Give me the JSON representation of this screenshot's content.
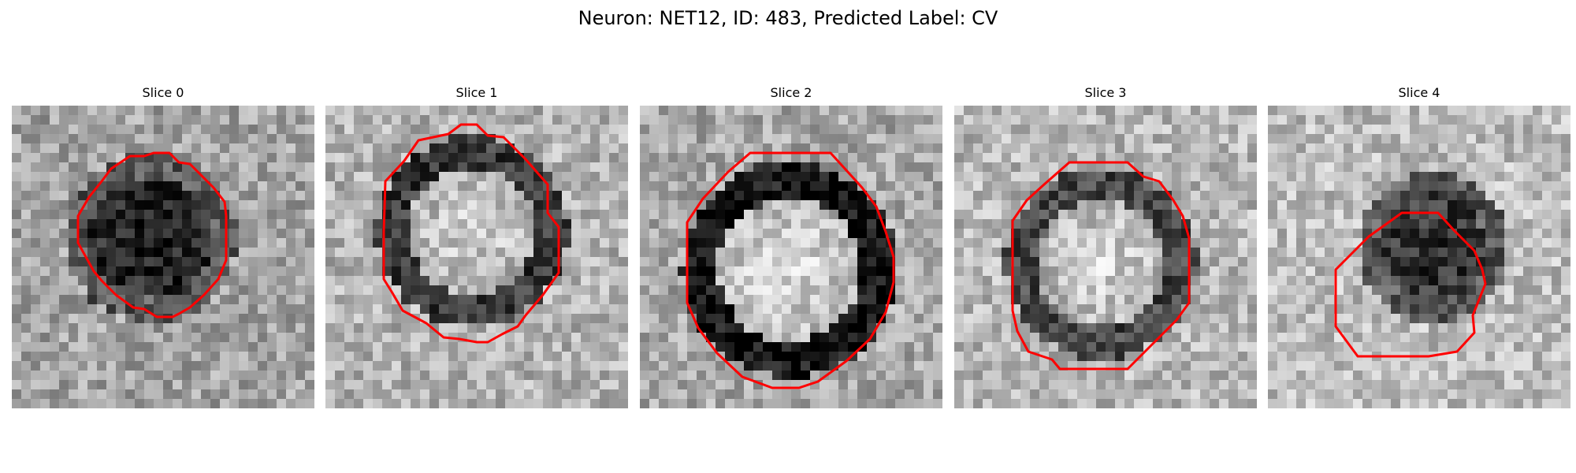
{
  "title": "Neuron: NET12, ID: 483, Predicted Label: CV",
  "contour_color": "#ff0000",
  "colormap": "gray",
  "panels": [
    {
      "label": "Slice 0",
      "center_level": 0.1,
      "ring_level": null,
      "background_level": 0.64,
      "contour": "circle"
    },
    {
      "label": "Slice 1",
      "center_level": 0.82,
      "ring_level": 0.22,
      "background_level": 0.7,
      "contour": "octagon"
    },
    {
      "label": "Slice 2",
      "center_level": 0.86,
      "ring_level": 0.08,
      "background_level": 0.66,
      "contour": "octagon"
    },
    {
      "label": "Slice 3",
      "center_level": 0.84,
      "ring_level": 0.28,
      "background_level": 0.72,
      "contour": "octagon"
    },
    {
      "label": "Slice 4",
      "center_level": 0.16,
      "ring_level": null,
      "background_level": 0.74,
      "contour": "octagon"
    }
  ]
}
